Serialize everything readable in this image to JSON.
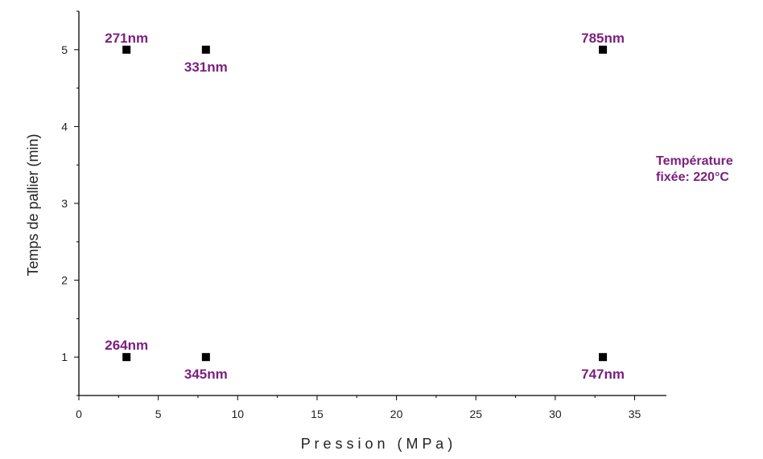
{
  "chart_data": {
    "type": "scatter",
    "xlabel": "P r e s s i o n   ( M P a )",
    "ylabel": "Temps de pallier (min)",
    "xlim": [
      0,
      37
    ],
    "ylim": [
      0.5,
      5.5
    ],
    "xticks": [
      0,
      5,
      10,
      15,
      20,
      25,
      30,
      35
    ],
    "yticks": [
      1,
      2,
      3,
      4,
      5
    ],
    "grid": false,
    "series": [
      {
        "marker": "square",
        "points": [
          {
            "x": 3,
            "y": 5,
            "label": "271nm",
            "label_pos": "above"
          },
          {
            "x": 8,
            "y": 5,
            "label": "331nm",
            "label_pos": "below"
          },
          {
            "x": 33,
            "y": 5,
            "label": "785nm",
            "label_pos": "above"
          },
          {
            "x": 3,
            "y": 1,
            "label": "264nm",
            "label_pos": "above"
          },
          {
            "x": 8,
            "y": 1,
            "label": "345nm",
            "label_pos": "below"
          },
          {
            "x": 33,
            "y": 1,
            "label": "747nm",
            "label_pos": "below"
          }
        ]
      }
    ],
    "annotation": {
      "lines": [
        "Température",
        "fixée: 220°C"
      ]
    }
  },
  "colors": {
    "label": "#7b1f7e",
    "point": "#000000",
    "axis": "#000000"
  }
}
